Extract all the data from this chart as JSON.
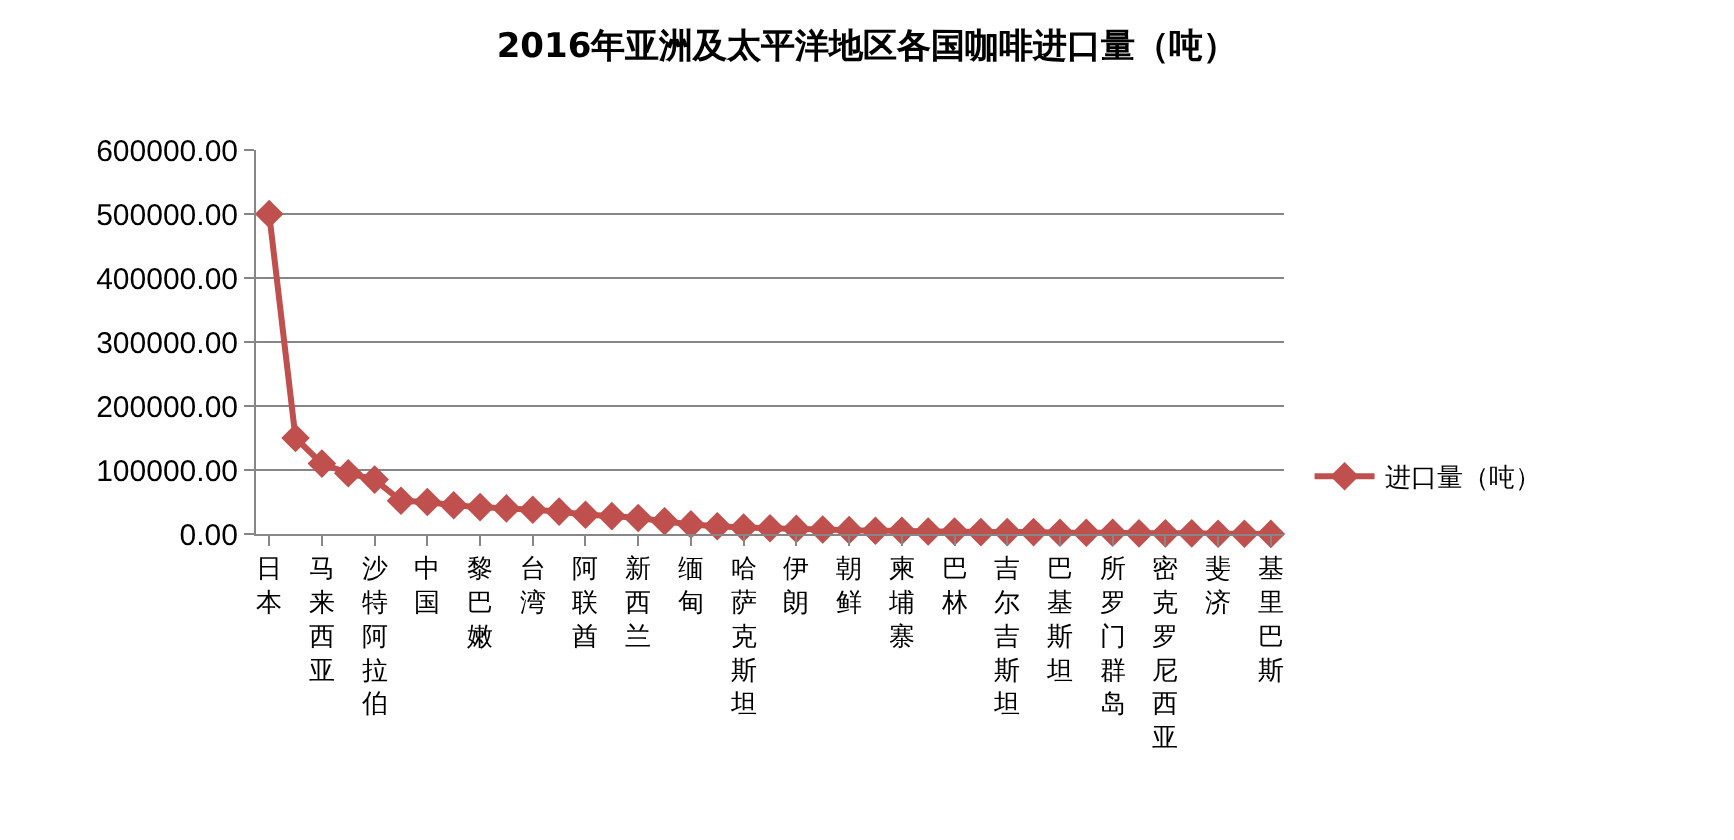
{
  "chart_data": {
    "type": "line",
    "title": "2016年亚洲及太平洋地区各国咖啡进口量（吨）",
    "categories": [
      "日本",
      null,
      "马来西亚",
      null,
      "沙特阿拉伯",
      null,
      "中国",
      null,
      "黎巴嫩",
      null,
      "台湾",
      null,
      "阿联酋",
      null,
      "新西兰",
      null,
      "缅甸",
      null,
      "哈萨克斯坦",
      null,
      "伊朗",
      null,
      "朝鲜",
      null,
      "柬埔寨",
      null,
      "巴林",
      null,
      "吉尔吉斯坦",
      null,
      "巴基斯坦",
      null,
      "所罗门群岛",
      null,
      "密克罗尼西亚",
      null,
      "斐济",
      null,
      "基里巴斯"
    ],
    "series": [
      {
        "name": "进口量（吨）",
        "color": "#c0504d",
        "values": [
          500000,
          150000,
          110000,
          95000,
          85000,
          52000,
          50000,
          45000,
          42000,
          40000,
          38000,
          35000,
          30000,
          28000,
          25000,
          20000,
          15000,
          12000,
          10000,
          9000,
          8000,
          7000,
          6000,
          5000,
          5000,
          4000,
          4000,
          3000,
          3000,
          3000,
          2000,
          2000,
          2000,
          1000,
          1000,
          1000,
          500,
          500,
          200
        ]
      }
    ],
    "ylim": [
      0,
      600000
    ],
    "yticks": [
      {
        "value": 0,
        "label": "0.00"
      },
      {
        "value": 100000,
        "label": "100000.00"
      },
      {
        "value": 200000,
        "label": "200000.00"
      },
      {
        "value": 300000,
        "label": "300000.00"
      },
      {
        "value": 400000,
        "label": "400000.00"
      },
      {
        "value": 500000,
        "label": "500000.00"
      },
      {
        "value": 600000,
        "label": "600000.00"
      }
    ],
    "grid": "y",
    "legend": "right",
    "marker": "diamond",
    "line_style": "solid"
  }
}
